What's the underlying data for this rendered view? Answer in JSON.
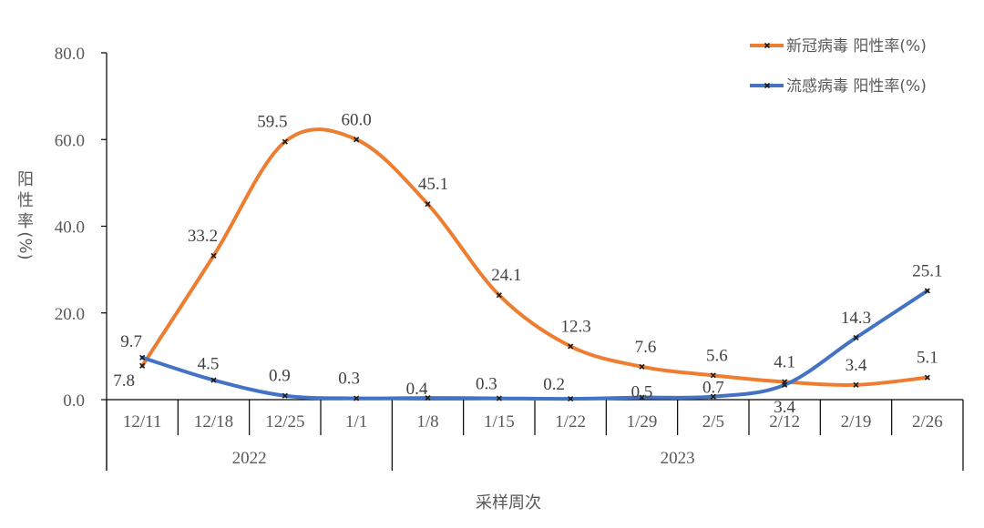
{
  "chart_data": {
    "type": "line",
    "title": "",
    "xlabel": "采样周次",
    "ylabel": "阳性率(%)",
    "ylim": [
      0,
      80
    ],
    "yticks": [
      "0.0",
      "20.0",
      "40.0",
      "60.0",
      "80.0"
    ],
    "categories": [
      "12/11",
      "12/18",
      "12/25",
      "1/1",
      "1/8",
      "1/15",
      "1/22",
      "1/29",
      "2/5",
      "2/12",
      "2/19",
      "2/26"
    ],
    "year_groups": [
      {
        "label": "2022",
        "span": [
          0,
          3
        ]
      },
      {
        "label": "2023",
        "span": [
          4,
          11
        ]
      }
    ],
    "series": [
      {
        "name": "新冠病毒 阳性率(%)",
        "color": "#ED7D31",
        "smooth": true,
        "values": [
          7.8,
          33.2,
          59.5,
          60.0,
          45.1,
          24.1,
          12.3,
          7.6,
          5.6,
          4.1,
          3.4,
          5.1
        ]
      },
      {
        "name": "流感病毒 阳性率(%)",
        "color": "#4472C4",
        "smooth": true,
        "values": [
          9.7,
          4.5,
          0.9,
          0.3,
          0.4,
          0.3,
          0.2,
          0.5,
          0.7,
          3.4,
          14.3,
          25.1
        ]
      }
    ],
    "legend_position": "top-right",
    "grid": false,
    "marker": "x"
  },
  "legend": {
    "items": [
      {
        "label": "新冠病毒 阳性率(%)",
        "color": "#ED7D31"
      },
      {
        "label": "流感病毒 阳性率(%)",
        "color": "#4472C4"
      }
    ]
  },
  "axis": {
    "y_title_chars": [
      "阳",
      "性",
      "率",
      "(%)"
    ],
    "x_title": "采样周次"
  }
}
